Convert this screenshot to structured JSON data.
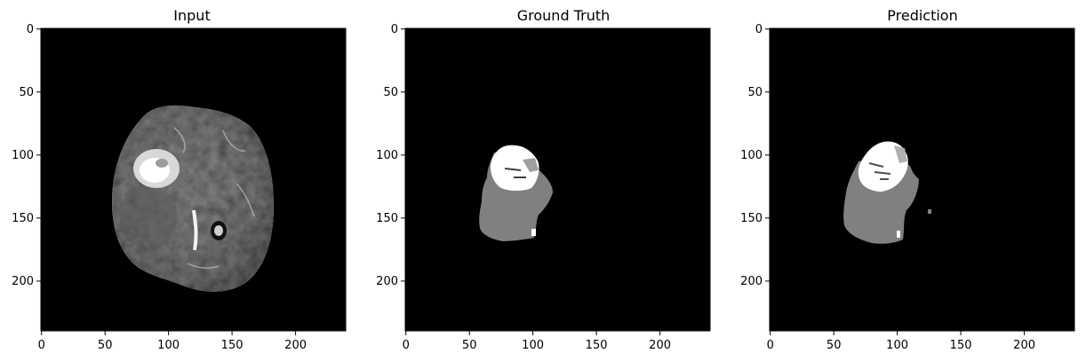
{
  "figure": {
    "background": "#ffffff",
    "axes_tick_values": {
      "x": [
        0,
        50,
        100,
        150,
        200
      ],
      "y": [
        0,
        50,
        100,
        150,
        200
      ]
    },
    "image_extent": [
      0,
      240
    ],
    "panels": [
      {
        "title": "Input",
        "content": "grayscale axial brain MRI slice with bright lesion on left side",
        "colormap": "gray"
      },
      {
        "title": "Ground Truth",
        "content": "segmentation mask: white core, gray surrounding region",
        "colormap": "gray"
      },
      {
        "title": "Prediction",
        "content": "predicted segmentation mask: white core, gray surrounding region",
        "colormap": "gray"
      }
    ]
  }
}
